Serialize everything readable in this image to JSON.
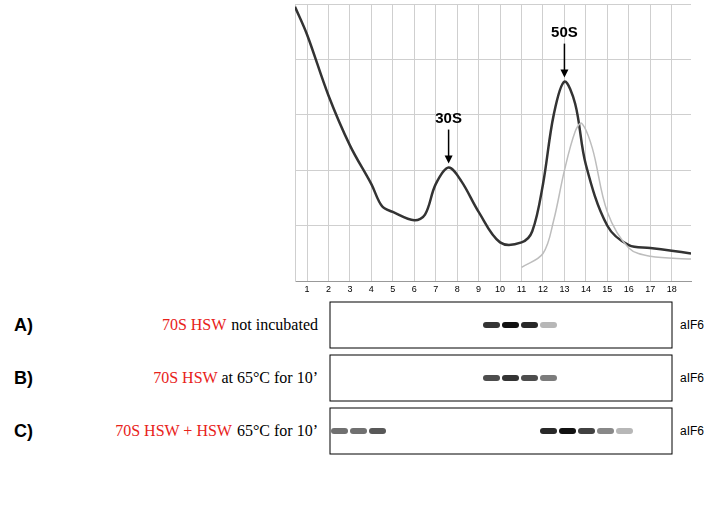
{
  "chart_data": {
    "type": "line",
    "series": [
      {
        "color": "#333333",
        "x": [
          0.44,
          1,
          2,
          3,
          4,
          4.5,
          5,
          6,
          6.5,
          7,
          7.6,
          8.2,
          9,
          10,
          11,
          11.5,
          12,
          12.5,
          13,
          13.5,
          14,
          15,
          16,
          17,
          18,
          18.9
        ],
        "values": [
          99,
          89,
          67,
          49,
          35,
          27,
          25,
          22,
          24,
          35,
          41,
          36,
          25,
          14,
          14,
          18,
          35,
          60,
          72,
          64,
          42,
          20,
          13,
          12,
          11,
          10
        ]
      },
      {
        "color": "#bdbdbd",
        "x": [
          11,
          12,
          12.5,
          13,
          13.5,
          13.8,
          14.3,
          15,
          16,
          17,
          18.9
        ],
        "values": [
          5,
          10,
          22,
          40,
          54,
          57,
          48,
          25,
          12,
          9,
          8
        ]
      }
    ],
    "xlim": [
      0.44,
      18.9
    ],
    "xticks": [
      1,
      2,
      3,
      4,
      5,
      6,
      7,
      8,
      9,
      10,
      11,
      12,
      13,
      14,
      15,
      16,
      17,
      18
    ],
    "ylim": [
      0,
      100
    ],
    "yticks": [
      0,
      20,
      40,
      60,
      80,
      100
    ],
    "grid": true,
    "tick_labels": "x",
    "annotations": [
      {
        "text": "30S",
        "x": 7.6,
        "y": 41
      },
      {
        "text": "50S",
        "x": 13,
        "y": 72
      }
    ]
  },
  "blots": {
    "panels": [
      {
        "letter": "A)",
        "label": [
          {
            "text": "70S HSW",
            "color": "#e8221a"
          },
          {
            "text": "not incubated",
            "color": "#000000"
          }
        ],
        "antibody": "aIF6",
        "bands": [
          {
            "lane": 9,
            "intensity": 0.85
          },
          {
            "lane": 10,
            "intensity": 1
          },
          {
            "lane": 11,
            "intensity": 0.9
          },
          {
            "lane": 12,
            "intensity": 0.3
          }
        ]
      },
      {
        "letter": "B)",
        "label": [
          {
            "text": "70S HSW",
            "color": "#e8221a"
          },
          {
            "text": "at 65°C for 10’",
            "color": "#000000"
          }
        ],
        "antibody": "aIF6",
        "bands": [
          {
            "lane": 9,
            "intensity": 0.75
          },
          {
            "lane": 10,
            "intensity": 0.85
          },
          {
            "lane": 11,
            "intensity": 0.75
          },
          {
            "lane": 12,
            "intensity": 0.55
          }
        ]
      },
      {
        "letter": "C)",
        "label": [
          {
            "text": "70S HSW + HSW",
            "color": "#e8221a"
          },
          {
            "text": "65°C for 10’",
            "color": "#000000"
          }
        ],
        "antibody": "aIF6",
        "bands": [
          {
            "lane": 1,
            "intensity": 0.6
          },
          {
            "lane": 2,
            "intensity": 0.6
          },
          {
            "lane": 3,
            "intensity": 0.7
          },
          {
            "lane": 12,
            "intensity": 0.9
          },
          {
            "lane": 13,
            "intensity": 1
          },
          {
            "lane": 14,
            "intensity": 0.8
          },
          {
            "lane": 15,
            "intensity": 0.5
          },
          {
            "lane": 16,
            "intensity": 0.3
          }
        ]
      }
    ]
  }
}
